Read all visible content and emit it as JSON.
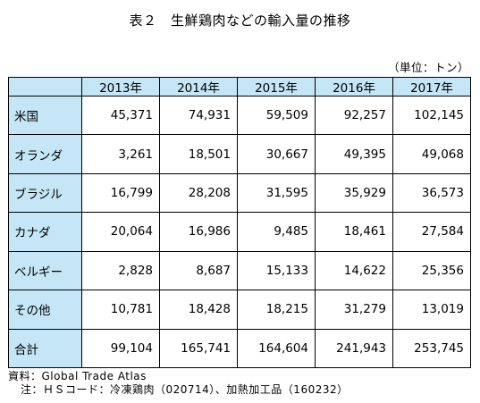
{
  "title": "表２　生鮮鶏肉などの輸入量の推移",
  "unit": "（単位：トン）",
  "table": {
    "corner": "",
    "years": [
      "2013年",
      "2014年",
      "2015年",
      "2016年",
      "2017年"
    ],
    "rows": [
      {
        "label": "米国",
        "values": [
          "45,371",
          "74,931",
          "59,509",
          "92,257",
          "102,145"
        ]
      },
      {
        "label": "オランダ",
        "values": [
          "3,261",
          "18,501",
          "30,667",
          "49,395",
          "49,068"
        ]
      },
      {
        "label": "ブラジル",
        "values": [
          "16,799",
          "28,208",
          "31,595",
          "35,929",
          "36,573"
        ]
      },
      {
        "label": "カナダ",
        "values": [
          "20,064",
          "16,986",
          "9,485",
          "18,461",
          "27,584"
        ]
      },
      {
        "label": "ベルギー",
        "values": [
          "2,828",
          "8,687",
          "15,133",
          "14,622",
          "25,356"
        ]
      },
      {
        "label": "その他",
        "values": [
          "10,781",
          "18,428",
          "18,215",
          "31,279",
          "13,019"
        ]
      },
      {
        "label": "合計",
        "values": [
          "99,104",
          "165,741",
          "164,604",
          "241,943",
          "253,745"
        ]
      }
    ]
  },
  "notes": {
    "source": "資料：Global Trade Atlas",
    "note": "注：ＨＳコード：冷凍鶏肉（020714）、加熱加工品（160232）"
  },
  "colors": {
    "header_fill": "#c4e6f6",
    "border": "#000000"
  }
}
